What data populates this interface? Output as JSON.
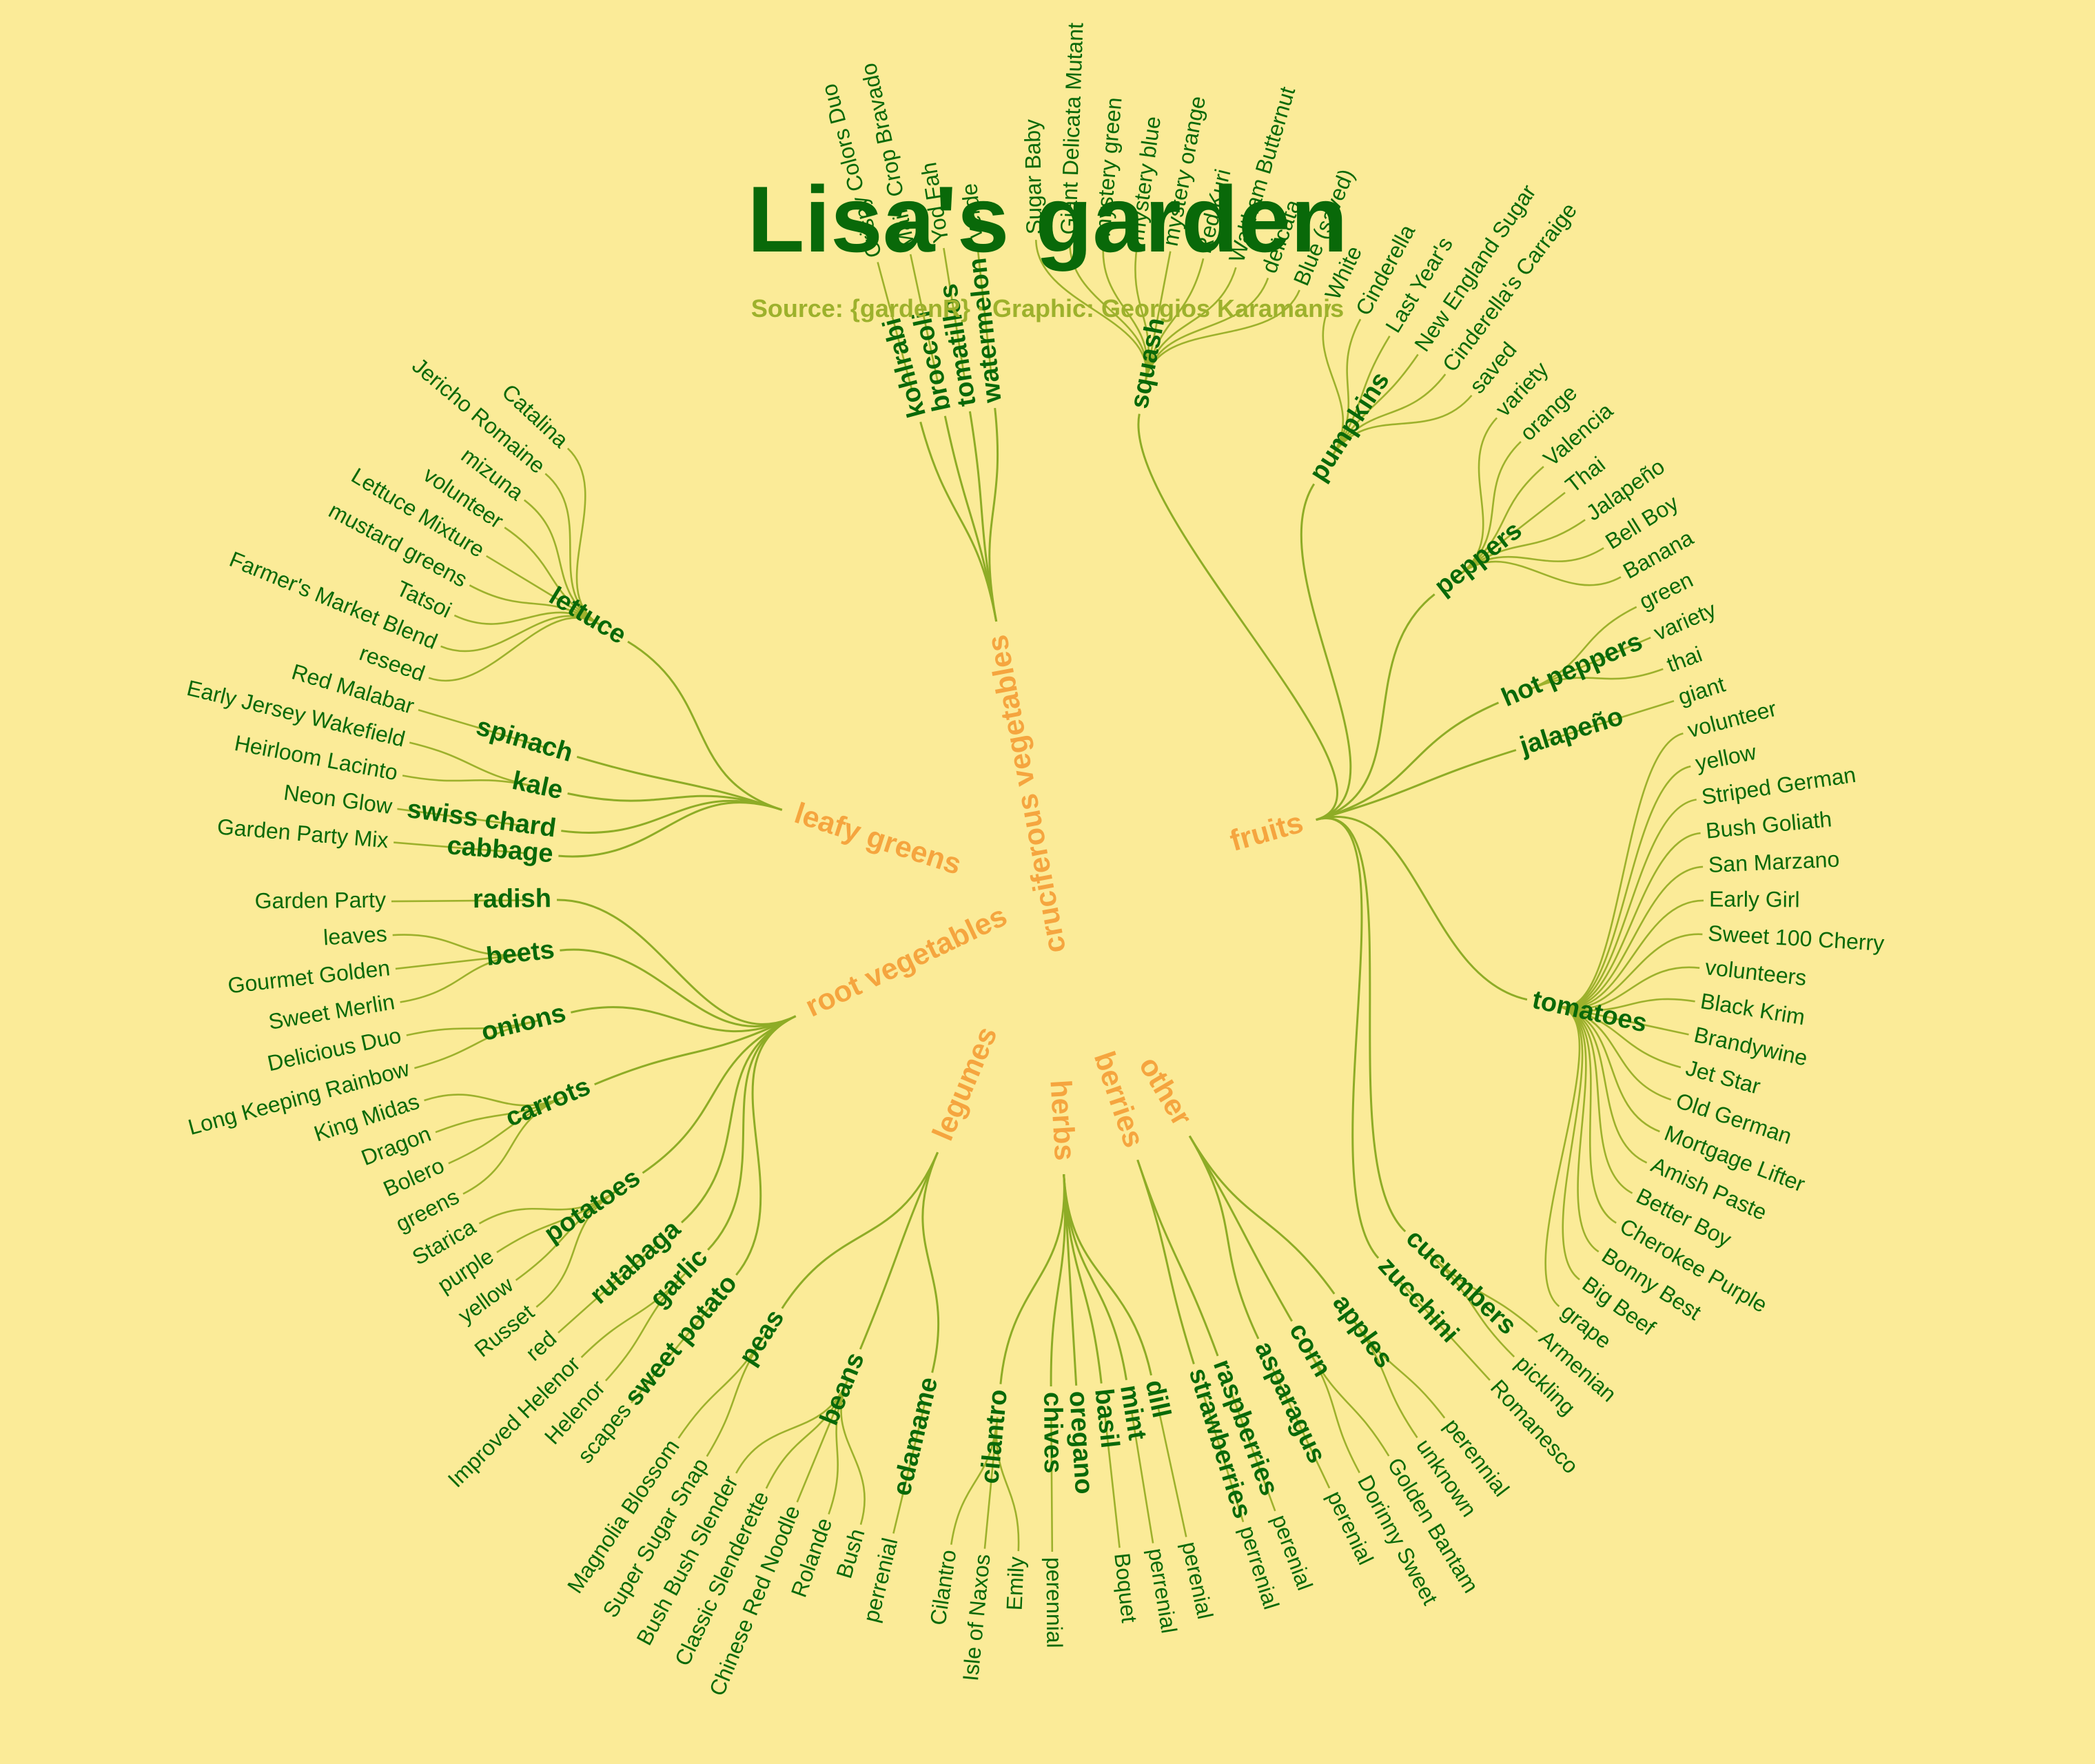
{
  "title": "Lisa's garden",
  "subtitle": "Source: {gardenR} · Graphic: Georgios Karamanis",
  "colors": {
    "background": "#fbeb98",
    "title": "#096909",
    "subtitle": "#9db12c",
    "category": "#f5a53f",
    "plant": "#096909",
    "variety": "#096909",
    "edge": "#9db12c"
  },
  "categories": [
    {
      "name": "cruciferous vegetables",
      "plants": [
        {
          "name": "kohlrabi",
          "varieties": [
            "Crispy Colors Duo"
          ]
        },
        {
          "name": "broccoli",
          "varieties": [
            "Main Crop Bravado"
          ]
        },
        {
          "name": "tomatillos",
          "varieties": [
            "Yod Fah"
          ]
        },
        {
          "name": "watermelon",
          "varieties": [
            "verde"
          ]
        }
      ]
    },
    {
      "name": "fruits",
      "plants": [
        {
          "name": "squash",
          "varieties": [
            "Sugar Baby",
            "Giant Delicata Mutant",
            "mystery green",
            "mystery blue",
            "mystery orange",
            "Red Kuri",
            "Waltham Butternut",
            "delicata",
            "Blue (saved)"
          ]
        },
        {
          "name": "pumpkins",
          "varieties": [
            "White",
            "Cinderella",
            "Last Year's",
            "New England Sugar",
            "Cinderella's Carraige",
            "saved"
          ]
        },
        {
          "name": "peppers",
          "varieties": [
            "variety",
            "orange",
            "Valencia",
            "Thai",
            "Jalapeño",
            "Bell Boy",
            "Banana"
          ]
        },
        {
          "name": "hot peppers",
          "varieties": [
            "green",
            "variety",
            "thai"
          ]
        },
        {
          "name": "jalapeño",
          "varieties": [
            "giant"
          ]
        },
        {
          "name": "tomatoes",
          "varieties": [
            "volunteer",
            "yellow",
            "Striped German",
            "Bush Goliath",
            "San Marzano",
            "Early Girl",
            "Sweet 100 Cherry",
            "volunteers",
            "Black Krim",
            "Brandywine",
            "Jet Star",
            "Old German",
            "Mortgage Lifter",
            "Amish Paste",
            "Better Boy",
            "Cherokee Purple",
            "Bonny Best",
            "Big Beef",
            "grape"
          ]
        },
        {
          "name": "cucumbers",
          "varieties": [
            "Armenian",
            "pickling"
          ]
        },
        {
          "name": "zucchini",
          "varieties": [
            "Romanesco"
          ]
        }
      ]
    },
    {
      "name": "other",
      "plants": [
        {
          "name": "apples",
          "varieties": [
            "perennial",
            "unknown"
          ]
        },
        {
          "name": "corn",
          "varieties": [
            "Golden Bantam",
            "Dorinny Sweet"
          ]
        },
        {
          "name": "asparagus",
          "varieties": [
            "perenial"
          ]
        }
      ]
    },
    {
      "name": "berries",
      "plants": [
        {
          "name": "raspberries",
          "varieties": [
            "perenial"
          ]
        },
        {
          "name": "strawberries",
          "varieties": [
            "perrenial"
          ]
        }
      ]
    },
    {
      "name": "herbs",
      "plants": [
        {
          "name": "dill",
          "varieties": [
            "perenial"
          ]
        },
        {
          "name": "mint",
          "varieties": [
            "perrenial"
          ]
        },
        {
          "name": "basil",
          "varieties": [
            "Boquet"
          ]
        },
        {
          "name": "oregano",
          "varieties": []
        },
        {
          "name": "chives",
          "varieties": [
            "perennial"
          ]
        },
        {
          "name": "cilantro",
          "varieties": [
            "Emily",
            "Isle of Naxos",
            "Cilantro"
          ]
        }
      ]
    },
    {
      "name": "legumes",
      "plants": [
        {
          "name": "edamame",
          "varieties": [
            "perrenial"
          ]
        },
        {
          "name": "beans",
          "varieties": [
            "Bush",
            "Rolande",
            "Chinese Red Noodle",
            "Classic Slenderette",
            "Bush Bush Slender"
          ]
        },
        {
          "name": "peas",
          "varieties": [
            "Super Sugar Snap",
            "Magnolia Blossom"
          ]
        }
      ]
    },
    {
      "name": "root vegetables",
      "plants": [
        {
          "name": "sweet potato",
          "varieties": [
            "scapes"
          ]
        },
        {
          "name": "garlic",
          "varieties": [
            "Helenor",
            "Improved Helenor"
          ]
        },
        {
          "name": "rutabaga",
          "varieties": [
            "red"
          ]
        },
        {
          "name": "potatoes",
          "varieties": [
            "Russet",
            "yellow",
            "purple",
            "Starica"
          ]
        },
        {
          "name": "carrots",
          "varieties": [
            "greens",
            "Bolero",
            "Dragon",
            "King Midas"
          ]
        },
        {
          "name": "onions",
          "varieties": [
            "Long Keeping Rainbow",
            "Delicious Duo"
          ]
        },
        {
          "name": "beets",
          "varieties": [
            "Sweet Merlin",
            "Gourmet Golden",
            "leaves"
          ]
        },
        {
          "name": "radish",
          "varieties": [
            "Garden Party"
          ]
        }
      ]
    },
    {
      "name": "leafy greens",
      "plants": [
        {
          "name": "cabbage",
          "varieties": [
            "Garden Party Mix"
          ]
        },
        {
          "name": "swiss chard",
          "varieties": [
            "Neon Glow"
          ]
        },
        {
          "name": "kale",
          "varieties": [
            "Heirloom Lacinto",
            "Early Jersey Wakefield"
          ]
        },
        {
          "name": "spinach",
          "varieties": [
            "Red Malabar"
          ]
        },
        {
          "name": "lettuce",
          "varieties": [
            "reseed",
            "Farmer's Market Blend",
            "Tatsoi",
            "mustard greens",
            "Lettuce Mixture",
            "volunteer",
            "mizuna",
            "Jericho Romaine",
            "Catalina"
          ]
        }
      ]
    }
  ]
}
